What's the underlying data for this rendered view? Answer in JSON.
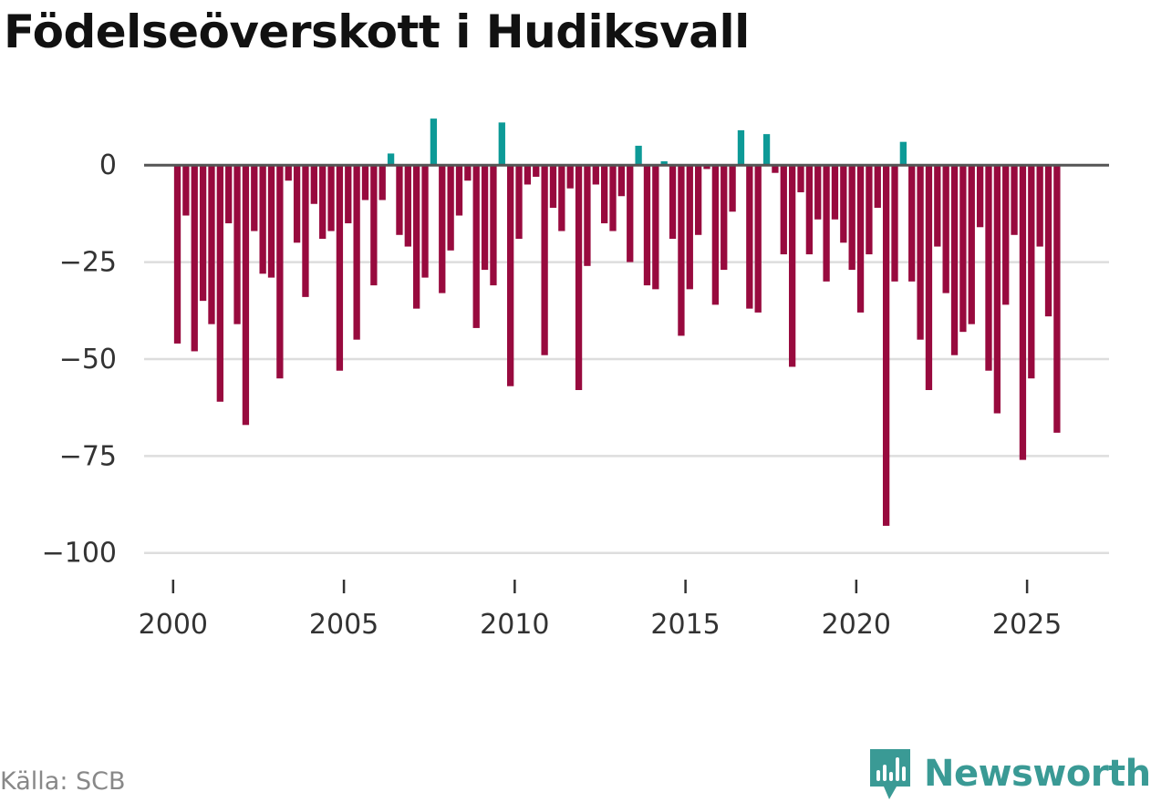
{
  "title": "Födelseöverskott i Hudiksvall",
  "source": "Källa: SCB",
  "brand": {
    "name": "Newsworthy",
    "icon": "newsworthy-logo-icon",
    "color": "#3a9a95"
  },
  "colors": {
    "positive": "#0d9a97",
    "negative": "#980a3e",
    "zero_line": "#555555",
    "grid": "#dddddd",
    "text": "#333333"
  },
  "chart_data": {
    "type": "bar",
    "title": "Födelseöverskott i Hudiksvall",
    "xlabel": "",
    "ylabel": "",
    "ylim": [
      -108,
      14
    ],
    "xlim": [
      1999.15,
      2027.4
    ],
    "y_ticks": [
      0,
      -25,
      -50,
      -75,
      -100
    ],
    "y_tick_labels": [
      "0",
      "−25",
      "−50",
      "−75",
      "−100"
    ],
    "x_ticks": [
      2000,
      2005,
      2010,
      2015,
      2020,
      2025
    ],
    "x_tick_labels": [
      "2000",
      "2005",
      "2010",
      "2015",
      "2020",
      "2025"
    ],
    "grid": true,
    "interval": "quarterly",
    "x": [
      2000.125,
      2000.375,
      2000.625,
      2000.875,
      2001.125,
      2001.375,
      2001.625,
      2001.875,
      2002.125,
      2002.375,
      2002.625,
      2002.875,
      2003.125,
      2003.375,
      2003.625,
      2003.875,
      2004.125,
      2004.375,
      2004.625,
      2004.875,
      2005.125,
      2005.375,
      2005.625,
      2005.875,
      2006.125,
      2006.375,
      2006.625,
      2006.875,
      2007.125,
      2007.375,
      2007.625,
      2007.875,
      2008.125,
      2008.375,
      2008.625,
      2008.875,
      2009.125,
      2009.375,
      2009.625,
      2009.875,
      2010.125,
      2010.375,
      2010.625,
      2010.875,
      2011.125,
      2011.375,
      2011.625,
      2011.875,
      2012.125,
      2012.375,
      2012.625,
      2012.875,
      2013.125,
      2013.375,
      2013.625,
      2013.875,
      2014.125,
      2014.375,
      2014.625,
      2014.875,
      2015.125,
      2015.375,
      2015.625,
      2015.875,
      2016.125,
      2016.375,
      2016.625,
      2016.875,
      2017.125,
      2017.375,
      2017.625,
      2017.875,
      2018.125,
      2018.375,
      2018.625,
      2018.875,
      2019.125,
      2019.375,
      2019.625,
      2019.875,
      2020.125,
      2020.375,
      2020.625,
      2020.875,
      2021.125,
      2021.375,
      2021.625,
      2021.875,
      2022.125,
      2022.375,
      2022.625,
      2022.875,
      2023.125,
      2023.375,
      2023.625,
      2023.875,
      2024.125,
      2024.375,
      2024.625,
      2024.875,
      2025.125,
      2025.375,
      2025.625,
      2025.875
    ],
    "values": [
      -46,
      -13,
      -48,
      -35,
      -41,
      -61,
      -15,
      -41,
      -67,
      -17,
      -28,
      -29,
      -55,
      -4,
      -20,
      -34,
      -10,
      -19,
      -17,
      -53,
      -15,
      -45,
      -9,
      -31,
      -9,
      3,
      -18,
      -21,
      -37,
      -29,
      12,
      -33,
      -22,
      -13,
      -4,
      -42,
      -27,
      -31,
      11,
      -57,
      -19,
      -5,
      -3,
      -49,
      -11,
      -17,
      -6,
      -58,
      -26,
      -5,
      -15,
      -17,
      -8,
      -25,
      5,
      -31,
      -32,
      1,
      -19,
      -44,
      -32,
      -18,
      -1,
      -36,
      -27,
      -12,
      9,
      -37,
      -38,
      8,
      -2,
      -23,
      -52,
      -7,
      -23,
      -14,
      -30,
      -14,
      -20,
      -27,
      -38,
      -23,
      -11,
      -93,
      -30,
      6,
      -30,
      -45,
      -58,
      -21,
      -33,
      -49,
      -43,
      -41,
      -16,
      -53,
      -64,
      -36,
      -18,
      -76,
      -55,
      -21,
      -39,
      -69
    ]
  }
}
